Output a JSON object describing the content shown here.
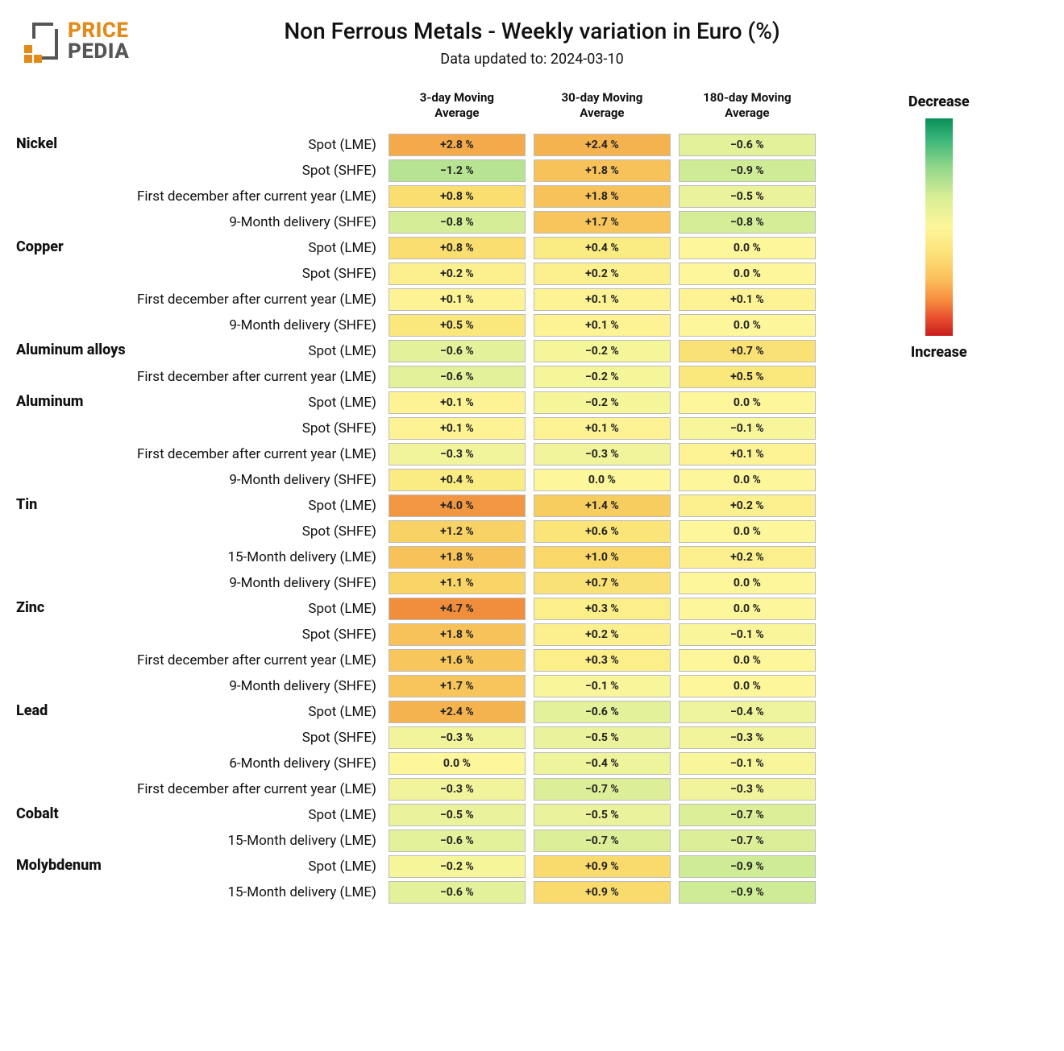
{
  "logo": {
    "text_top": "PRICE",
    "text_bottom": "PEDIA",
    "orange": "#e28a1a",
    "gray": "#555555"
  },
  "title": "Non Ferrous Metals - Weekly variation in Euro (%)",
  "subtitle": "Data updated to: 2024-03-10",
  "columns": [
    "3-day Moving\nAverage",
    "30-day Moving\nAverage",
    "180-day Moving\nAverage"
  ],
  "legend": {
    "top": "Decrease",
    "bottom": "Increase",
    "gradient": [
      "#0a8f5a",
      "#3db779",
      "#8fd68a",
      "#d7ee95",
      "#fdf69a",
      "#fde27a",
      "#fbbf5a",
      "#f58a3e",
      "#e84d2d",
      "#c81e1e"
    ]
  },
  "colorScale": {
    "domain": [
      -1.5,
      -1.0,
      -0.5,
      0.0,
      0.5,
      1.0,
      2.0,
      3.0,
      5.0
    ],
    "range": [
      "#9fdc8f",
      "#c7e994",
      "#eaf39b",
      "#fdf69a",
      "#fbe87d",
      "#f9d768",
      "#f6bd55",
      "#f3a447",
      "#ef8a3c"
    ]
  },
  "cell_border": "#bbbbbb",
  "background": "#ffffff",
  "font_family": "sans-serif",
  "rows": [
    {
      "category": "Nickel",
      "label": "Spot (LME)",
      "v": [
        2.8,
        2.4,
        -0.6
      ]
    },
    {
      "category": "",
      "label": "Spot (SHFE)",
      "v": [
        -1.2,
        1.8,
        -0.9
      ]
    },
    {
      "category": "",
      "label": "First december after current year (LME)",
      "v": [
        0.8,
        1.8,
        -0.5
      ]
    },
    {
      "category": "",
      "label": "9-Month delivery (SHFE)",
      "v": [
        -0.8,
        1.7,
        -0.8
      ]
    },
    {
      "category": "Copper",
      "label": "Spot (LME)",
      "v": [
        0.8,
        0.4,
        0.0
      ]
    },
    {
      "category": "",
      "label": "Spot (SHFE)",
      "v": [
        0.2,
        0.2,
        0.0
      ]
    },
    {
      "category": "",
      "label": "First december after current year (LME)",
      "v": [
        0.1,
        0.1,
        0.1
      ]
    },
    {
      "category": "",
      "label": "9-Month delivery (SHFE)",
      "v": [
        0.5,
        0.1,
        0.0
      ]
    },
    {
      "category": "Aluminum alloys",
      "label": "Spot (LME)",
      "v": [
        -0.6,
        -0.2,
        0.7
      ]
    },
    {
      "category": "",
      "label": "First december after current year (LME)",
      "v": [
        -0.6,
        -0.2,
        0.5
      ]
    },
    {
      "category": "Aluminum",
      "label": "Spot (LME)",
      "v": [
        0.1,
        -0.2,
        0.0
      ]
    },
    {
      "category": "",
      "label": "Spot (SHFE)",
      "v": [
        0.1,
        0.1,
        -0.1
      ]
    },
    {
      "category": "",
      "label": "First december after current year (LME)",
      "v": [
        -0.3,
        -0.3,
        0.1
      ]
    },
    {
      "category": "",
      "label": "9-Month delivery (SHFE)",
      "v": [
        0.4,
        0.0,
        0.0
      ]
    },
    {
      "category": "Tin",
      "label": "Spot (LME)",
      "v": [
        4.0,
        1.4,
        0.2
      ]
    },
    {
      "category": "",
      "label": "Spot (SHFE)",
      "v": [
        1.2,
        0.6,
        0.0
      ]
    },
    {
      "category": "",
      "label": "15-Month delivery (LME)",
      "v": [
        1.8,
        1.0,
        0.2
      ]
    },
    {
      "category": "",
      "label": "9-Month delivery (SHFE)",
      "v": [
        1.1,
        0.7,
        0.0
      ]
    },
    {
      "category": "Zinc",
      "label": "Spot (LME)",
      "v": [
        4.7,
        0.3,
        0.0
      ]
    },
    {
      "category": "",
      "label": "Spot (SHFE)",
      "v": [
        1.8,
        0.2,
        -0.1
      ]
    },
    {
      "category": "",
      "label": "First december after current year (LME)",
      "v": [
        1.6,
        0.3,
        0.0
      ]
    },
    {
      "category": "",
      "label": "9-Month delivery (SHFE)",
      "v": [
        1.7,
        -0.1,
        0.0
      ]
    },
    {
      "category": "Lead",
      "label": "Spot (LME)",
      "v": [
        2.4,
        -0.6,
        -0.4
      ]
    },
    {
      "category": "",
      "label": "Spot (SHFE)",
      "v": [
        -0.3,
        -0.5,
        -0.3
      ]
    },
    {
      "category": "",
      "label": "6-Month delivery (SHFE)",
      "v": [
        0.0,
        -0.4,
        -0.1
      ]
    },
    {
      "category": "",
      "label": "First december after current year (LME)",
      "v": [
        -0.3,
        -0.7,
        -0.3
      ]
    },
    {
      "category": "Cobalt",
      "label": "Spot (LME)",
      "v": [
        -0.5,
        -0.5,
        -0.7
      ]
    },
    {
      "category": "",
      "label": "15-Month delivery (LME)",
      "v": [
        -0.6,
        -0.7,
        -0.7
      ]
    },
    {
      "category": "Molybdenum",
      "label": "Spot (LME)",
      "v": [
        -0.2,
        0.9,
        -0.9
      ]
    },
    {
      "category": "",
      "label": "15-Month delivery (LME)",
      "v": [
        -0.6,
        0.9,
        -0.9
      ]
    }
  ]
}
